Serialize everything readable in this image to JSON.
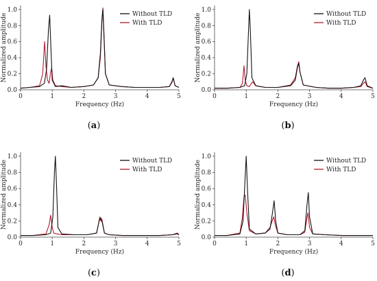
{
  "chart_data": [
    {
      "panel_label": "a",
      "type": "line",
      "xlabel": "Frequency (Hz)",
      "ylabel": "Normalized amplitude",
      "xlim": [
        0,
        5
      ],
      "ylim": [
        0,
        1.05
      ],
      "xticks": [
        "0",
        "1",
        "2",
        "3",
        "4",
        "5"
      ],
      "yticks": [
        "0.0",
        "0.2",
        "0.4",
        "0.6",
        "0.8",
        "1.0"
      ],
      "legend": "top-right",
      "series": [
        {
          "name": "Without TLD",
          "color": "#111111",
          "x": [
            0,
            0.3,
            0.6,
            0.75,
            0.82,
            0.88,
            0.92,
            0.95,
            1.0,
            1.1,
            1.3,
            1.6,
            2.0,
            2.3,
            2.45,
            2.52,
            2.57,
            2.6,
            2.63,
            2.68,
            2.8,
            3.2,
            3.6,
            4.0,
            4.4,
            4.7,
            4.78,
            4.82,
            4.88,
            5.0
          ],
          "y": [
            0.02,
            0.03,
            0.04,
            0.08,
            0.25,
            0.75,
            0.93,
            0.6,
            0.12,
            0.04,
            0.05,
            0.03,
            0.04,
            0.06,
            0.15,
            0.45,
            0.88,
            1.0,
            0.7,
            0.2,
            0.06,
            0.04,
            0.03,
            0.03,
            0.03,
            0.04,
            0.1,
            0.15,
            0.05,
            0.03
          ]
        },
        {
          "name": "With TLD",
          "color": "#b2182b",
          "x": [
            0,
            0.3,
            0.6,
            0.7,
            0.76,
            0.8,
            0.85,
            0.9,
            0.95,
            0.98,
            1.02,
            1.1,
            1.3,
            1.6,
            2.0,
            2.3,
            2.45,
            2.52,
            2.57,
            2.6,
            2.63,
            2.68,
            2.8,
            3.2,
            3.6,
            4.0,
            4.4,
            4.7,
            4.78,
            4.82,
            4.88,
            5.0
          ],
          "y": [
            0.02,
            0.03,
            0.05,
            0.2,
            0.6,
            0.3,
            0.12,
            0.08,
            0.22,
            0.27,
            0.12,
            0.05,
            0.04,
            0.03,
            0.04,
            0.06,
            0.15,
            0.4,
            0.85,
            1.02,
            0.75,
            0.2,
            0.06,
            0.04,
            0.03,
            0.03,
            0.03,
            0.04,
            0.09,
            0.14,
            0.05,
            0.03
          ]
        }
      ]
    },
    {
      "panel_label": "b",
      "type": "line",
      "xlabel": "Frequency (Hz)",
      "ylabel": "Normalized amplitude",
      "xlim": [
        0,
        5
      ],
      "ylim": [
        0,
        1.05
      ],
      "xticks": [
        "0",
        "1",
        "2",
        "3",
        "4",
        "5"
      ],
      "yticks": [
        "0.0",
        "0.2",
        "0.4",
        "0.6",
        "0.8",
        "1.0"
      ],
      "legend": "top-right",
      "series": [
        {
          "name": "Without TLD",
          "color": "#111111",
          "x": [
            0,
            0.4,
            0.8,
            0.95,
            1.02,
            1.07,
            1.1,
            1.13,
            1.18,
            1.3,
            1.6,
            2.0,
            2.4,
            2.55,
            2.62,
            2.66,
            2.7,
            2.8,
            3.2,
            3.6,
            4.0,
            4.4,
            4.62,
            4.7,
            4.75,
            4.82,
            5.0
          ],
          "y": [
            0.02,
            0.02,
            0.03,
            0.05,
            0.2,
            0.7,
            1.0,
            0.75,
            0.15,
            0.05,
            0.03,
            0.03,
            0.05,
            0.12,
            0.28,
            0.33,
            0.22,
            0.06,
            0.03,
            0.02,
            0.02,
            0.03,
            0.05,
            0.12,
            0.15,
            0.05,
            0.02
          ]
        },
        {
          "name": "With TLD",
          "color": "#b2182b",
          "x": [
            0,
            0.4,
            0.8,
            0.88,
            0.93,
            0.97,
            1.02,
            1.1,
            1.2,
            1.3,
            1.6,
            2.0,
            2.4,
            2.55,
            2.62,
            2.66,
            2.7,
            2.8,
            3.2,
            3.6,
            4.0,
            4.4,
            4.62,
            4.7,
            4.75,
            4.82,
            5.0
          ],
          "y": [
            0.02,
            0.02,
            0.03,
            0.08,
            0.3,
            0.12,
            0.05,
            0.04,
            0.1,
            0.05,
            0.03,
            0.03,
            0.06,
            0.15,
            0.3,
            0.35,
            0.22,
            0.06,
            0.03,
            0.02,
            0.02,
            0.03,
            0.04,
            0.08,
            0.1,
            0.04,
            0.02
          ]
        }
      ]
    },
    {
      "panel_label": "c",
      "type": "line",
      "xlabel": "Frequency (Hz)",
      "ylabel": "Normalized amplitude",
      "xlim": [
        0,
        5
      ],
      "ylim": [
        0,
        1.05
      ],
      "xticks": [
        "0",
        "1",
        "2",
        "3",
        "4",
        "5"
      ],
      "yticks": [
        "0.0",
        "0.2",
        "0.4",
        "0.6",
        "0.8",
        "1.0"
      ],
      "legend": "top-right",
      "series": [
        {
          "name": "Without TLD",
          "color": "#111111",
          "x": [
            0,
            0.4,
            0.8,
            0.95,
            1.02,
            1.07,
            1.1,
            1.13,
            1.18,
            1.3,
            1.7,
            2.1,
            2.4,
            2.48,
            2.53,
            2.58,
            2.65,
            2.8,
            3.2,
            3.6,
            4.0,
            4.4,
            4.8,
            4.95,
            5.0
          ],
          "y": [
            0.02,
            0.02,
            0.03,
            0.05,
            0.25,
            0.8,
            1.0,
            0.7,
            0.12,
            0.04,
            0.03,
            0.03,
            0.05,
            0.2,
            0.24,
            0.18,
            0.05,
            0.03,
            0.02,
            0.02,
            0.02,
            0.02,
            0.03,
            0.05,
            0.03
          ]
        },
        {
          "name": "With TLD",
          "color": "#b2182b",
          "x": [
            0,
            0.4,
            0.8,
            0.9,
            0.95,
            1.0,
            1.05,
            1.15,
            1.3,
            1.7,
            2.1,
            2.4,
            2.47,
            2.5,
            2.53,
            2.57,
            2.65,
            2.8,
            3.2,
            3.6,
            4.0,
            4.4,
            4.8,
            4.95,
            5.0
          ],
          "y": [
            0.02,
            0.02,
            0.04,
            0.15,
            0.27,
            0.12,
            0.05,
            0.04,
            0.03,
            0.03,
            0.03,
            0.05,
            0.18,
            0.25,
            0.2,
            0.22,
            0.05,
            0.03,
            0.02,
            0.02,
            0.02,
            0.02,
            0.03,
            0.04,
            0.03
          ]
        }
      ]
    },
    {
      "panel_label": "d",
      "type": "line",
      "xlabel": "Frequency (Hz)",
      "ylabel": "Normalized amplitude",
      "xlim": [
        0,
        5
      ],
      "ylim": [
        0,
        1.05
      ],
      "xticks": [
        "0",
        "1",
        "2",
        "3",
        "4",
        "5"
      ],
      "yticks": [
        "0.0",
        "0.2",
        "0.4",
        "0.6",
        "0.8",
        "1.0"
      ],
      "legend": "top-right",
      "series": [
        {
          "name": "Without TLD",
          "color": "#111111",
          "x": [
            0,
            0.4,
            0.8,
            0.9,
            0.96,
            1.0,
            1.04,
            1.1,
            1.3,
            1.6,
            1.75,
            1.83,
            1.88,
            1.93,
            2.0,
            2.3,
            2.7,
            2.85,
            2.92,
            2.96,
            3.0,
            3.1,
            3.5,
            4.0,
            4.5,
            5.0
          ],
          "y": [
            0.02,
            0.02,
            0.04,
            0.2,
            0.7,
            1.0,
            0.6,
            0.1,
            0.04,
            0.05,
            0.1,
            0.3,
            0.45,
            0.2,
            0.05,
            0.03,
            0.03,
            0.08,
            0.4,
            0.55,
            0.25,
            0.04,
            0.03,
            0.02,
            0.02,
            0.02
          ]
        },
        {
          "name": "With TLD",
          "color": "#b2182b",
          "x": [
            0,
            0.4,
            0.8,
            0.88,
            0.93,
            0.97,
            1.02,
            1.1,
            1.3,
            1.6,
            1.75,
            1.82,
            1.87,
            1.92,
            2.0,
            2.3,
            2.7,
            2.85,
            2.9,
            2.95,
            3.0,
            3.1,
            3.5,
            4.0,
            4.5,
            5.0
          ],
          "y": [
            0.02,
            0.02,
            0.05,
            0.25,
            0.5,
            0.52,
            0.3,
            0.08,
            0.04,
            0.05,
            0.12,
            0.2,
            0.25,
            0.15,
            0.05,
            0.03,
            0.03,
            0.06,
            0.2,
            0.3,
            0.12,
            0.04,
            0.03,
            0.02,
            0.02,
            0.02
          ]
        }
      ]
    }
  ]
}
